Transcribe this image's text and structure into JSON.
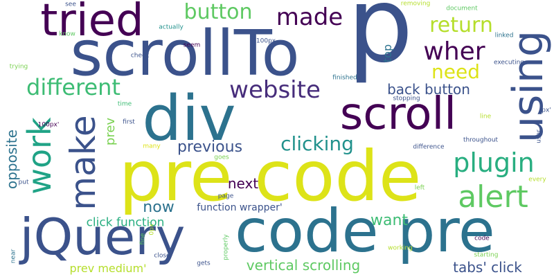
{
  "words": [
    {
      "text": "p",
      "color": "#3b528b"
    },
    {
      "text": "scrollTo",
      "color": "#3b528b"
    },
    {
      "text": "pre code",
      "color": "#dde318"
    },
    {
      "text": "code pre",
      "color": "#2c728e"
    },
    {
      "text": "div",
      "color": "#2c728e"
    },
    {
      "text": "jQuery",
      "color": "#3b528b"
    },
    {
      "text": "tried",
      "color": "#440154"
    },
    {
      "text": "scroll",
      "color": "#440154"
    },
    {
      "text": "using",
      "color": "#3b528b"
    },
    {
      "text": "make",
      "color": "#3b528b"
    },
    {
      "text": "work",
      "color": "#20a386"
    },
    {
      "text": "alert",
      "color": "#5ec962"
    },
    {
      "text": "plugin",
      "color": "#28ae80"
    },
    {
      "text": "website",
      "color": "#472d7b"
    },
    {
      "text": "made",
      "color": "#440154"
    },
    {
      "text": "wher",
      "color": "#440154"
    },
    {
      "text": "different",
      "color": "#3dbc74"
    },
    {
      "text": "button",
      "color": "#5ec962"
    },
    {
      "text": "return",
      "color": "#b5de2b"
    },
    {
      "text": "need",
      "color": "#dde318"
    },
    {
      "text": "back button",
      "color": "#3b528b"
    },
    {
      "text": "clicking",
      "color": "#21918c"
    },
    {
      "text": "previous",
      "color": "#3b528b"
    },
    {
      "text": "next",
      "color": "#440154"
    },
    {
      "text": "now",
      "color": "#2c728e"
    },
    {
      "text": "opposite",
      "color": "#2c728e"
    },
    {
      "text": "prev",
      "color": "#7ad151"
    },
    {
      "text": "want",
      "color": "#3dbc74"
    },
    {
      "text": "click function",
      "color": "#28ae80"
    },
    {
      "text": "function wrapper'",
      "color": "#3b528b"
    },
    {
      "text": "vertical scrolling",
      "color": "#5ec962"
    },
    {
      "text": "tabs' click",
      "color": "#3b528b"
    },
    {
      "text": "prev medium'",
      "color": "#b5de2b"
    },
    {
      "text": "top",
      "color": "#2c728e"
    },
    {
      "text": "see",
      "color": "#3b528b"
    },
    {
      "text": "removing",
      "color": "#b5de2b"
    },
    {
      "text": "document",
      "color": "#5ec962"
    },
    {
      "text": "linked",
      "color": "#2c728e"
    },
    {
      "text": "know",
      "color": "#5ec962"
    },
    {
      "text": "actually",
      "color": "#21918c"
    },
    {
      "text": "100px",
      "color": "#3b528b"
    },
    {
      "text": "seem",
      "color": "#440154"
    },
    {
      "text": "check",
      "color": "#3b528b"
    },
    {
      "text": "executing",
      "color": "#3b528b"
    },
    {
      "text": "trying",
      "color": "#7ad151"
    },
    {
      "text": "finished",
      "color": "#2c728e"
    },
    {
      "text": "stopping",
      "color": "#3b528b"
    },
    {
      "text": "time",
      "color": "#3dbc74"
    },
    {
      "text": "line",
      "color": "#b5de2b"
    },
    {
      "text": "px'",
      "color": "#3b528b"
    },
    {
      "text": "100px'",
      "color": "#440154"
    },
    {
      "text": "first",
      "color": "#3b528b"
    },
    {
      "text": "many",
      "color": "#dde318"
    },
    {
      "text": "throughout",
      "color": "#3b528b"
    },
    {
      "text": "user",
      "color": "#3b528b"
    },
    {
      "text": "difference",
      "color": "#3b528b"
    },
    {
      "text": "goes",
      "color": "#7ad151"
    },
    {
      "text": "every",
      "color": "#b5de2b"
    },
    {
      "text": "put",
      "color": "#3b528b"
    },
    {
      "text": "page",
      "color": "#3b528b"
    },
    {
      "text": "left",
      "color": "#7ad151"
    },
    {
      "text": "near",
      "color": "#2c728e"
    },
    {
      "text": "fine",
      "color": "#5ec962"
    },
    {
      "text": "0px'",
      "color": "#b5de2b"
    },
    {
      "text": "properly",
      "color": "#5ec962"
    },
    {
      "text": "code",
      "color": "#440154"
    },
    {
      "text": "working",
      "color": "#b5de2b"
    },
    {
      "text": "close",
      "color": "#3b528b"
    },
    {
      "text": "gets",
      "color": "#3b528b"
    },
    {
      "text": "starting",
      "color": "#7ad151"
    }
  ]
}
